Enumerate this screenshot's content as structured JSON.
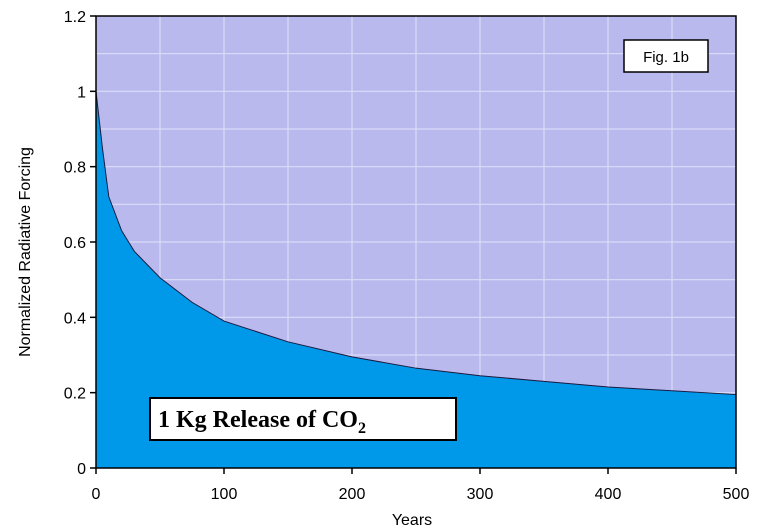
{
  "chart_data": {
    "type": "area",
    "xlabel": "Years",
    "ylabel": "Normalized Radiative Forcing",
    "xlim": [
      0,
      500
    ],
    "ylim": [
      0,
      1.2
    ],
    "x_ticks": [
      "0",
      "100",
      "200",
      "300",
      "400",
      "500"
    ],
    "y_ticks": [
      "0",
      "0.2",
      "0.4",
      "0.6",
      "0.8",
      "1",
      "1.2"
    ],
    "grid": true,
    "annotations": {
      "fig_label": "Fig. 1b",
      "release_text": "1 Kg Release of CO",
      "release_subscript": "2"
    },
    "series": [
      {
        "x": [
          0,
          5,
          10,
          20,
          30,
          40,
          50,
          75,
          100,
          150,
          200,
          250,
          300,
          350,
          400,
          450,
          500
        ],
        "values": [
          1.0,
          0.85,
          0.72,
          0.63,
          0.575,
          0.54,
          0.505,
          0.44,
          0.39,
          0.335,
          0.295,
          0.265,
          0.245,
          0.23,
          0.215,
          0.205,
          0.195
        ]
      }
    ],
    "colors": {
      "background": "#b9b9ee",
      "fill": "#0098e8",
      "grid": "#dcdcf8"
    }
  }
}
